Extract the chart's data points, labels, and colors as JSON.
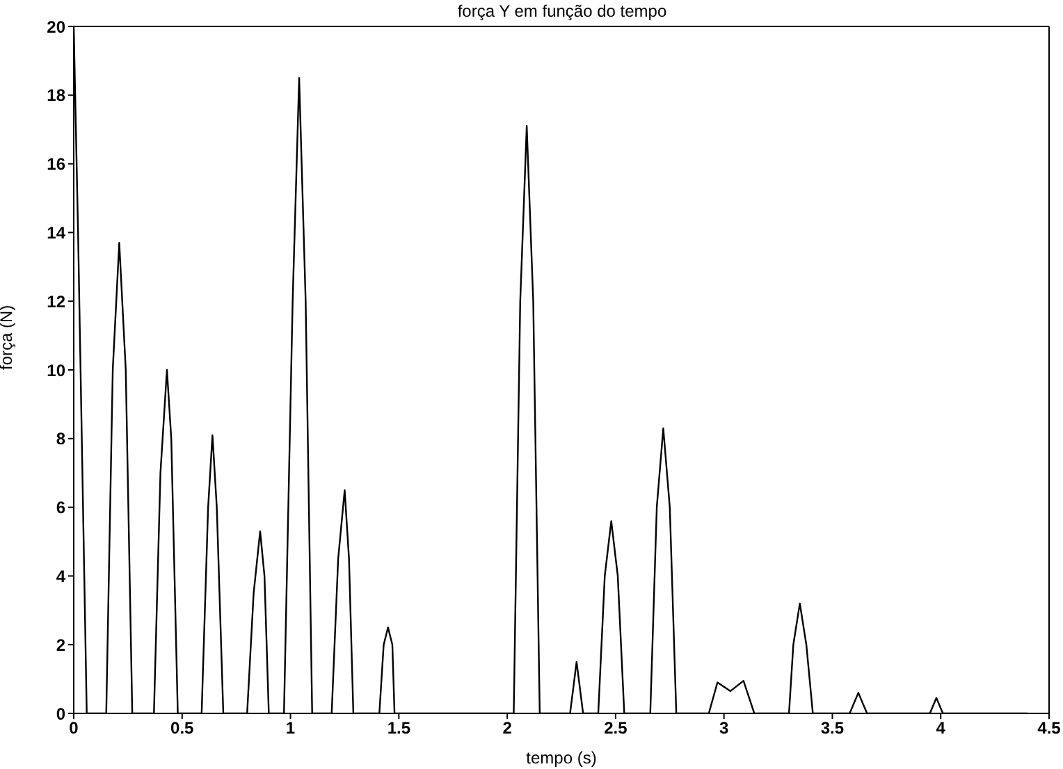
{
  "chart_data": {
    "type": "line",
    "title": "força Y em função do tempo",
    "xlabel": "tempo (s)",
    "ylabel": "força (N)",
    "xlim": [
      0,
      4.5
    ],
    "xticks": [
      0,
      0.5,
      1,
      1.5,
      2,
      2.5,
      3,
      3.5,
      4,
      4.5
    ],
    "ylim": [
      0,
      20
    ],
    "yticks": [
      0,
      2,
      4,
      6,
      8,
      10,
      12,
      14,
      16,
      18,
      20
    ],
    "marker": "none",
    "line_style": "solid",
    "series": [
      {
        "color": "#000000",
        "x": [
          0,
          0.02,
          0.06,
          0.15,
          0.18,
          0.21,
          0.24,
          0.27,
          0.37,
          0.4,
          0.43,
          0.45,
          0.48,
          0.59,
          0.62,
          0.64,
          0.66,
          0.69,
          0.8,
          0.83,
          0.86,
          0.88,
          0.9,
          0.97,
          1.01,
          1.04,
          1.07,
          1.1,
          1.19,
          1.22,
          1.25,
          1.27,
          1.29,
          1.41,
          1.43,
          1.45,
          1.47,
          1.48,
          2.03,
          2.06,
          2.09,
          2.12,
          2.15,
          2.29,
          2.32,
          2.35,
          2.42,
          2.45,
          2.48,
          2.51,
          2.54,
          2.66,
          2.69,
          2.72,
          2.75,
          2.78,
          2.93,
          2.97,
          3.03,
          3.09,
          3.14,
          3.3,
          3.32,
          3.35,
          3.38,
          3.41,
          3.58,
          3.62,
          3.66,
          3.95,
          3.98,
          4.01,
          4.4
        ],
        "values": [
          20,
          14,
          0,
          0,
          10,
          13.7,
          10,
          0,
          0,
          7,
          10,
          8,
          0,
          0,
          6,
          8.1,
          6,
          0,
          0,
          3.5,
          5.3,
          4,
          0,
          0,
          12,
          18.5,
          12,
          0,
          0,
          4.5,
          6.5,
          4.5,
          0,
          0,
          2,
          2.5,
          2,
          0,
          0,
          12,
          17.1,
          12,
          0,
          0,
          1.5,
          0,
          0,
          4,
          5.6,
          4,
          0,
          0,
          6,
          8.3,
          6,
          0,
          0,
          0.9,
          0.65,
          0.95,
          0,
          0,
          2,
          3.2,
          2,
          0,
          0,
          0.6,
          0,
          0,
          0.45,
          0,
          0
        ]
      }
    ]
  }
}
